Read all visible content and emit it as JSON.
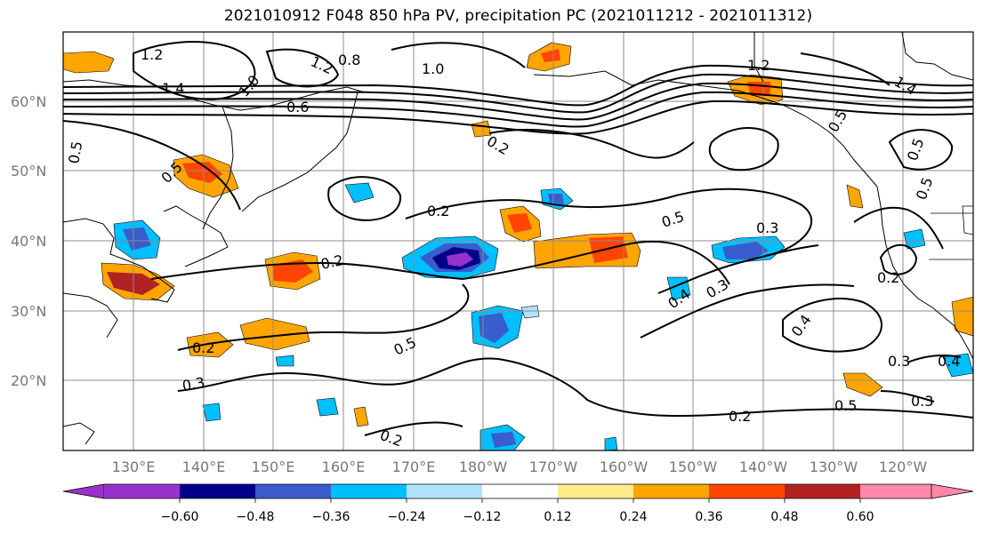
{
  "title": "2021010912 F048 850 hPa PV, precipitation PC (2021011212 - 2021011312)",
  "lat_labels": [
    "60°N",
    "50°N",
    "40°N",
    "30°N",
    "20°N"
  ],
  "lon_labels": [
    "130°E",
    "140°E",
    "150°E",
    "160°E",
    "170°E",
    "180°W",
    "170°W",
    "160°W",
    "150°W",
    "140°W",
    "130°W",
    "120°W"
  ],
  "colorbar": {
    "ticks": [
      "−0.60",
      "−0.48",
      "−0.36",
      "−0.24",
      "−0.12",
      "0.12",
      "0.24",
      "0.36",
      "0.48",
      "0.60"
    ],
    "colors": [
      "#9932cc",
      "#00008b",
      "#3a5ccc",
      "#00bfff",
      "#b0e2ff",
      "#ffffff",
      "#ffec8b",
      "#ffa500",
      "#ff4500",
      "#b22222",
      "#ff88aa"
    ]
  },
  "contour_labels": [
    "1.2",
    "1.2",
    "0.8",
    "1.0",
    "1.4",
    "1.0",
    "0.6",
    "1.2",
    "0.5",
    "0.5",
    "0.2",
    "0.2",
    "0.2",
    "0.5",
    "0.3",
    "0.4",
    "0.3",
    "0.2",
    "0.3",
    "0.5",
    "0.4",
    "0.3",
    "0.5",
    "0.2",
    "0.2",
    "0.4",
    "0.5",
    "0.5",
    "1.4",
    "0.5",
    "0.2",
    "0.3"
  ],
  "palette": {
    "line": "#000000",
    "grid": "#8c8c8c",
    "land": "#000000"
  }
}
